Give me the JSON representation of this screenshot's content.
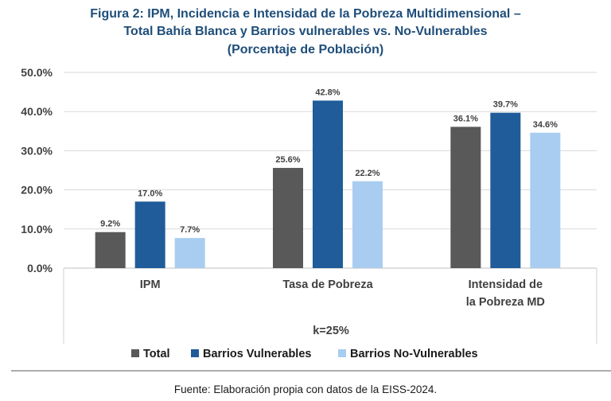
{
  "chart_data": {
    "type": "bar",
    "title_lines": [
      "Figura 2: IPM, Incidencia e Intensidad de la Pobreza Multidimensional –",
      "Total Bahía Blanca y Barrios vulnerables vs. No-Vulnerables",
      "(Porcentaje de Población)"
    ],
    "categories": [
      [
        "IPM"
      ],
      [
        "Tasa de Pobreza"
      ],
      [
        "Intensidad de",
        "la Pobreza MD"
      ]
    ],
    "series": [
      {
        "name": "Total",
        "color": "#595959",
        "values": [
          9.2,
          25.6,
          36.1
        ],
        "labels": [
          "9.2%",
          "25.6%",
          "36.1%"
        ]
      },
      {
        "name": "Barrios Vulnerables",
        "color": "#1f5c99",
        "values": [
          17.0,
          42.8,
          39.7
        ],
        "labels": [
          "17.0%",
          "42.8%",
          "39.7%"
        ]
      },
      {
        "name": "Barrios No-Vulnerables",
        "color": "#a9cdf0",
        "values": [
          7.7,
          22.2,
          34.6
        ],
        "labels": [
          "7.7%",
          "22.2%",
          "34.6%"
        ]
      }
    ],
    "y_ticks": [
      "0.0%",
      "10.0%",
      "20.0%",
      "30.0%",
      "40.0%",
      "50.0%"
    ],
    "ylim": [
      0,
      50
    ],
    "grid": true,
    "legend_position": "bottom",
    "annotation": "k=25%",
    "source": "Fuente: Elaboración propia con datos de la EISS-2024."
  }
}
